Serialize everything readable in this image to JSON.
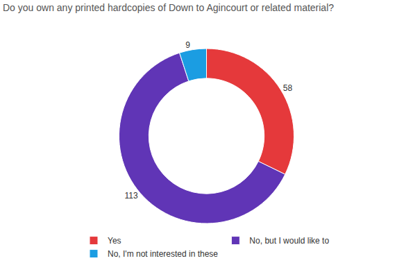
{
  "chart_data": {
    "type": "pie",
    "title": "Do you own any printed hardcopies of Down to Agincourt or related material?",
    "categories": [
      "Yes",
      "No, but I would like to",
      "No, I'm not interested in these"
    ],
    "values": [
      58,
      113,
      9
    ],
    "colors": [
      "#e5393b",
      "#6035b6",
      "#1b9de2"
    ],
    "data_labels": true,
    "legend": "bottom"
  }
}
